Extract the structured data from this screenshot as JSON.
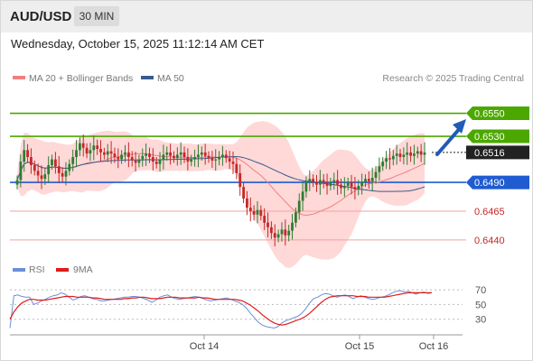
{
  "header": {
    "symbol": "AUD/USD",
    "interval": "30 MIN",
    "datetime": "Wednesday, October 15, 2025 11:12:14 AM CET"
  },
  "legend": {
    "ma20": "MA 20 + Bollinger Bands",
    "ma50": "MA 50",
    "source": "Research © 2025 Trading Central"
  },
  "rsi_legend": {
    "rsi": "RSI",
    "ma": "9MA"
  },
  "colors": {
    "up": "#2e7d32",
    "down": "#c62828",
    "bollinger": "#ffc7c7",
    "ma20": "#f08080",
    "ma50": "#3a5a8f",
    "resistance": "#4ca800",
    "support": "#1f5bd1",
    "support2": "#f3a0a0",
    "price": "#222222",
    "rsi": "#6b8fd6",
    "rsi_ma": "#e01b1b"
  },
  "chart_data": [
    {
      "type": "candlestick",
      "x_ticks": [
        "Oct 14",
        "Oct 15",
        "Oct 16"
      ],
      "levels": [
        {
          "value": 0.655,
          "label": "0.6550",
          "kind": "resistance"
        },
        {
          "value": 0.653,
          "label": "0.6530",
          "kind": "resistance"
        },
        {
          "value": 0.6516,
          "label": "0.6516",
          "kind": "last-price"
        },
        {
          "value": 0.649,
          "label": "0.6490",
          "kind": "pivot"
        },
        {
          "value": 0.6465,
          "label": "0.6465",
          "kind": "support"
        },
        {
          "value": 0.644,
          "label": "0.6440",
          "kind": "support"
        }
      ],
      "ylim": [
        0.6425,
        0.657
      ],
      "close": [
        0.6492,
        0.6508,
        0.6518,
        0.6512,
        0.6505,
        0.65,
        0.6496,
        0.6493,
        0.6497,
        0.6505,
        0.651,
        0.6504,
        0.6498,
        0.6495,
        0.65,
        0.6506,
        0.6512,
        0.6518,
        0.6524,
        0.652,
        0.6515,
        0.6518,
        0.6522,
        0.6519,
        0.6516,
        0.6514,
        0.6517,
        0.6515,
        0.6512,
        0.651,
        0.6514,
        0.6516,
        0.6512,
        0.6509,
        0.6507,
        0.651,
        0.6513,
        0.6515,
        0.6512,
        0.6508,
        0.6506,
        0.651,
        0.6514,
        0.6516,
        0.6513,
        0.6511,
        0.6514,
        0.6516,
        0.6512,
        0.6508,
        0.651,
        0.6512,
        0.6514,
        0.6516,
        0.6513,
        0.6511,
        0.6509,
        0.651,
        0.6512,
        0.6514,
        0.6511,
        0.6508,
        0.6506,
        0.6498,
        0.6486,
        0.6476,
        0.6468,
        0.6465,
        0.6462,
        0.6466,
        0.6461,
        0.6455,
        0.6451,
        0.6446,
        0.6442,
        0.6445,
        0.6449,
        0.6444,
        0.6448,
        0.6455,
        0.6464,
        0.6474,
        0.6482,
        0.649,
        0.6493,
        0.649,
        0.6488,
        0.6492,
        0.649,
        0.6487,
        0.649,
        0.6492,
        0.6488,
        0.6485,
        0.6487,
        0.649,
        0.6486,
        0.6484,
        0.6487,
        0.649,
        0.6493,
        0.6491,
        0.6494,
        0.6499,
        0.6504,
        0.6508,
        0.6511,
        0.651,
        0.6513,
        0.6515,
        0.6512,
        0.6514,
        0.6516,
        0.6513,
        0.6515,
        0.6517,
        0.6514,
        0.6516
      ],
      "rsi": {
        "ylim": [
          10,
          80
        ],
        "ticks": [
          70,
          50,
          30
        ],
        "rsi_values": [
          18,
          62,
          63,
          61,
          60,
          60,
          50,
          52,
          55,
          57,
          60,
          62,
          63,
          66,
          64,
          60,
          56,
          58,
          61,
          62,
          60,
          58,
          57,
          55,
          55,
          56,
          57,
          58,
          59,
          60,
          60,
          61,
          61,
          60,
          58,
          56,
          53,
          56,
          60,
          62,
          63,
          60,
          58,
          57,
          58,
          59,
          60,
          61,
          60,
          58,
          56,
          55,
          56,
          57,
          58,
          59,
          57,
          55,
          53,
          50,
          45,
          38,
          32,
          26,
          22,
          20,
          19,
          18,
          20,
          25,
          28,
          30,
          32,
          34,
          38,
          44,
          52,
          58,
          60,
          63,
          65,
          64,
          62,
          60,
          62,
          63,
          61,
          58,
          60,
          62,
          60,
          58,
          57,
          58,
          60,
          61,
          63,
          66,
          68,
          69,
          67,
          68,
          66,
          64,
          66,
          67,
          65,
          66
        ],
        "ma_values": [
          30,
          40,
          47,
          52,
          55,
          57,
          57,
          56,
          56,
          56,
          57,
          58,
          59,
          60,
          61,
          61,
          61,
          60,
          60,
          60,
          60,
          59,
          59,
          58,
          57,
          57,
          57,
          57,
          57,
          58,
          58,
          59,
          59,
          60,
          60,
          59,
          58,
          58,
          58,
          59,
          60,
          60,
          60,
          59,
          59,
          59,
          59,
          59,
          60,
          59,
          59,
          58,
          57,
          57,
          57,
          57,
          57,
          57,
          56,
          55,
          52,
          49,
          45,
          41,
          36,
          32,
          28,
          25,
          23,
          22,
          23,
          25,
          27,
          29,
          31,
          34,
          38,
          43,
          48,
          53,
          57,
          60,
          61,
          62,
          62,
          62,
          62,
          62,
          61,
          61,
          61,
          60,
          60,
          60,
          60,
          60,
          61,
          62,
          63,
          64,
          65,
          66,
          66,
          66,
          66,
          66,
          66,
          66
        ]
      }
    }
  ]
}
